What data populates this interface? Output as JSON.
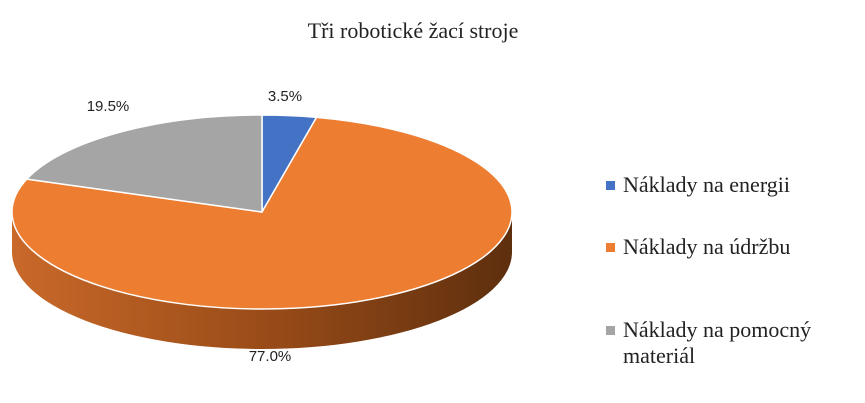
{
  "chart_data": {
    "type": "pie",
    "title": "Tři robotické žací stroje",
    "categories": [
      "Náklady na energii",
      "Náklady na údržbu",
      "Náklady na pomocný materiál"
    ],
    "values": [
      3.5,
      77.0,
      19.5
    ],
    "value_labels": [
      "3.5%",
      "77.0%",
      "19.5%"
    ],
    "colors": [
      "#4472c4",
      "#ed7d31",
      "#a5a5a5"
    ],
    "legend": "right"
  }
}
